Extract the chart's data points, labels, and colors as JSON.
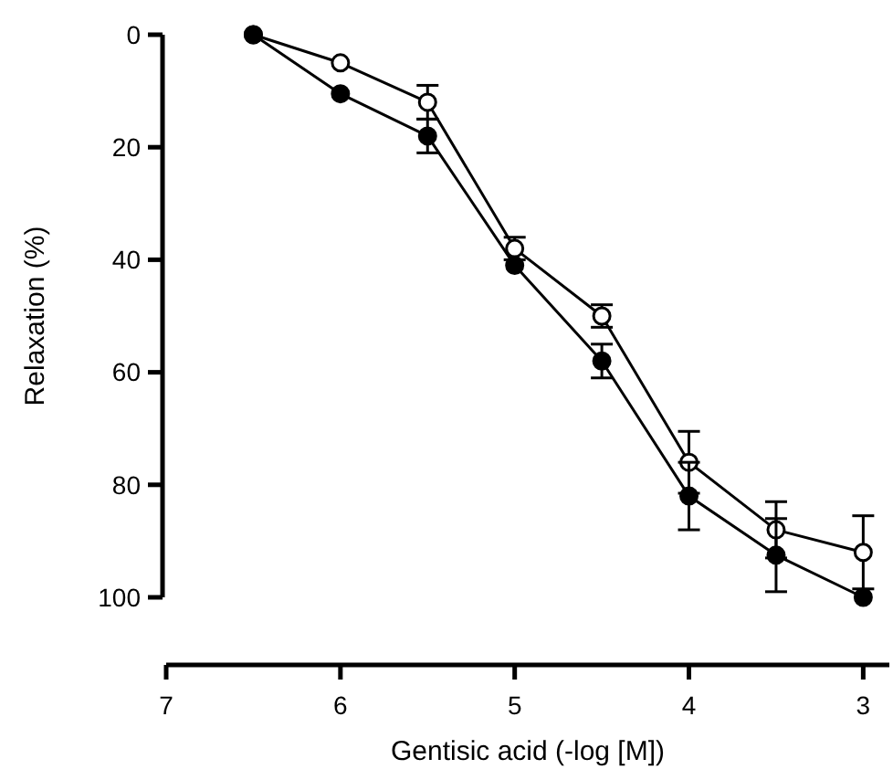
{
  "chart_data": {
    "type": "line",
    "xlabel": "Gentisic acid (-log [M])",
    "ylabel": "Relaxation (%)",
    "x": [
      6.5,
      6,
      5.5,
      5,
      4.5,
      4,
      3.5,
      3
    ],
    "series": [
      {
        "color": "#000000",
        "values": [
          0,
          5,
          12,
          38,
          50,
          76,
          88,
          92
        ],
        "errors": [
          null,
          null,
          3,
          2,
          2,
          5.5,
          5,
          6.5
        ]
      },
      {
        "color": "#000000",
        "values": [
          0,
          10.5,
          18,
          41,
          58,
          82,
          92.5,
          100
        ],
        "errors": [
          null,
          null,
          3,
          null,
          3,
          6,
          6.5,
          null
        ]
      }
    ],
    "xlim": [
      7,
      2.85
    ],
    "xticks": [
      7,
      6,
      5,
      4,
      3
    ],
    "ylim": [
      100,
      0
    ],
    "yticks": [
      0,
      20,
      40,
      60,
      80,
      100
    ],
    "marker": "circle",
    "line_style": "solid"
  }
}
